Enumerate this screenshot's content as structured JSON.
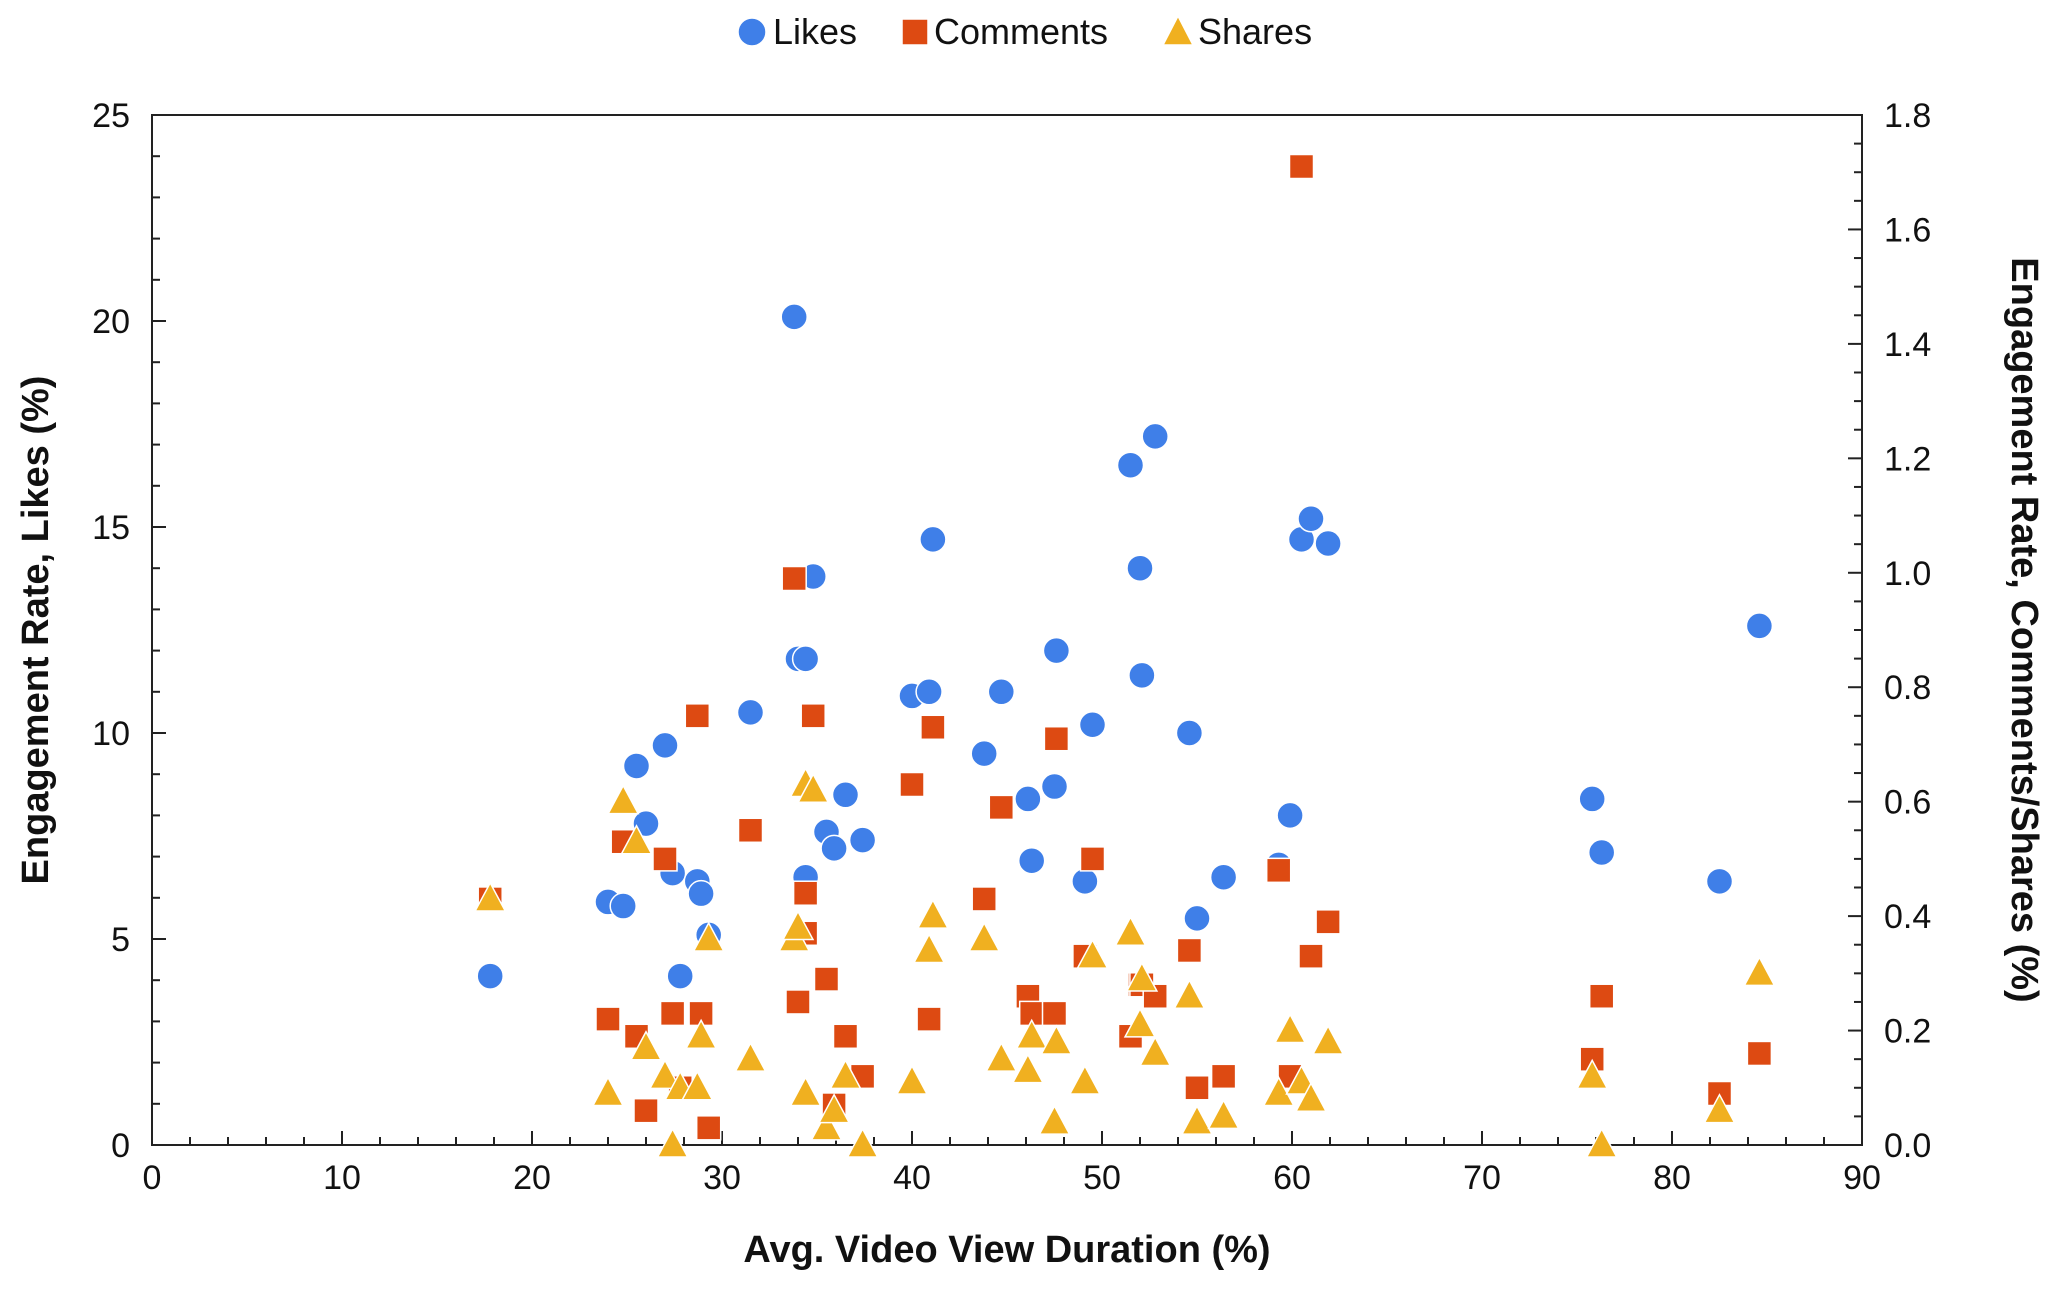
{
  "chart_data": {
    "type": "scatter",
    "title": "",
    "xlabel": "Avg. Video View Duration (%)",
    "ylabel": "Engagement Rate, Likes (%)",
    "y2label": "Engagement Rate, Comments/Shares (%)",
    "xlim": [
      0,
      90
    ],
    "ylim": [
      0,
      25
    ],
    "y2lim": [
      0,
      1.8
    ],
    "xticks": [
      "0",
      "10",
      "20",
      "30",
      "40",
      "50",
      "60",
      "70",
      "80",
      "90"
    ],
    "yticks": [
      "0",
      "5",
      "10",
      "15",
      "20",
      "25"
    ],
    "y2ticks": [
      "0.0",
      "0.2",
      "0.4",
      "0.6",
      "0.8",
      "1.0",
      "1.2",
      "1.4",
      "1.6",
      "1.8"
    ],
    "grid": false,
    "legend_position": "top-center",
    "colors": {
      "likes": "#3f7fe8",
      "comments": "#dd4a12",
      "shares": "#f0b020"
    },
    "series": [
      {
        "name": "Likes",
        "axis": "left",
        "marker": "circle",
        "points": [
          [
            17.8,
            4.1
          ],
          [
            24,
            5.9
          ],
          [
            24.8,
            5.8
          ],
          [
            25.5,
            9.2
          ],
          [
            26,
            7.8
          ],
          [
            27,
            9.7
          ],
          [
            27.4,
            6.6
          ],
          [
            27.8,
            4.1
          ],
          [
            28.7,
            6.4
          ],
          [
            28.9,
            6.1
          ],
          [
            29.3,
            5.1
          ],
          [
            31.5,
            10.5
          ],
          [
            33.8,
            20.1
          ],
          [
            34,
            11.8
          ],
          [
            34.4,
            11.8
          ],
          [
            34.4,
            6.5
          ],
          [
            34.8,
            13.8
          ],
          [
            35.5,
            7.6
          ],
          [
            35.9,
            7.2
          ],
          [
            36.5,
            8.5
          ],
          [
            37.4,
            7.4
          ],
          [
            40,
            10.9
          ],
          [
            40.9,
            11
          ],
          [
            41.1,
            14.7
          ],
          [
            43.8,
            9.5
          ],
          [
            44.7,
            11
          ],
          [
            46.1,
            8.4
          ],
          [
            46.3,
            6.9
          ],
          [
            47.5,
            8.7
          ],
          [
            47.6,
            12
          ],
          [
            49.1,
            6.4
          ],
          [
            49.5,
            10.2
          ],
          [
            51.5,
            16.5
          ],
          [
            52,
            14
          ],
          [
            52.1,
            11.4
          ],
          [
            52.8,
            17.2
          ],
          [
            54.6,
            10
          ],
          [
            55,
            5.5
          ],
          [
            56.4,
            6.5
          ],
          [
            59.3,
            6.8
          ],
          [
            59.9,
            8
          ],
          [
            60.5,
            14.7
          ],
          [
            61,
            15.2
          ],
          [
            61.9,
            14.6
          ],
          [
            75.8,
            8.4
          ],
          [
            76.3,
            7.1
          ],
          [
            82.5,
            6.4
          ],
          [
            84.6,
            12.6
          ]
        ]
      },
      {
        "name": "Comments",
        "axis": "right",
        "marker": "square",
        "points": [
          [
            17.8,
            0.43
          ],
          [
            24,
            0.22
          ],
          [
            24.8,
            0.53
          ],
          [
            25.5,
            0.19
          ],
          [
            26,
            0.06
          ],
          [
            27,
            0.5
          ],
          [
            27.4,
            0.23
          ],
          [
            27.8,
            0.1
          ],
          [
            28.7,
            0.75
          ],
          [
            28.9,
            0.23
          ],
          [
            29.3,
            0.03
          ],
          [
            31.5,
            0.55
          ],
          [
            33.8,
            0.99
          ],
          [
            34,
            0.25
          ],
          [
            34.4,
            0.44
          ],
          [
            34.4,
            0.37
          ],
          [
            34.8,
            0.75
          ],
          [
            35.5,
            0.29
          ],
          [
            35.9,
            0.07
          ],
          [
            36.5,
            0.19
          ],
          [
            37.4,
            0.12
          ],
          [
            40,
            0.63
          ],
          [
            40.9,
            0.22
          ],
          [
            41.1,
            0.73
          ],
          [
            43.8,
            0.43
          ],
          [
            44.7,
            0.59
          ],
          [
            46.1,
            0.26
          ],
          [
            46.3,
            0.23
          ],
          [
            47.5,
            0.23
          ],
          [
            47.6,
            0.71
          ],
          [
            49.1,
            0.33
          ],
          [
            49.5,
            0.5
          ],
          [
            51.5,
            0.19
          ],
          [
            52,
            0.28
          ],
          [
            52.1,
            0.28
          ],
          [
            52.8,
            0.26
          ],
          [
            54.6,
            0.34
          ],
          [
            55,
            0.1
          ],
          [
            56.4,
            0.12
          ],
          [
            59.3,
            0.48
          ],
          [
            59.9,
            0.12
          ],
          [
            60.5,
            1.71
          ],
          [
            61,
            0.33
          ],
          [
            61.9,
            0.39
          ],
          [
            75.8,
            0.15
          ],
          [
            76.3,
            0.26
          ],
          [
            82.5,
            0.09
          ],
          [
            84.6,
            0.16
          ]
        ]
      },
      {
        "name": "Shares",
        "axis": "right",
        "marker": "triangle",
        "points": [
          [
            17.8,
            0.43
          ],
          [
            24,
            0.09
          ],
          [
            24.8,
            0.6
          ],
          [
            25.5,
            0.53
          ],
          [
            26,
            0.17
          ],
          [
            27,
            0.12
          ],
          [
            27.4,
            0
          ],
          [
            27.8,
            0.1
          ],
          [
            28.7,
            0.1
          ],
          [
            28.9,
            0.19
          ],
          [
            29.3,
            0.36
          ],
          [
            31.5,
            0.15
          ],
          [
            33.8,
            0.36
          ],
          [
            34,
            0.38
          ],
          [
            34.4,
            0.63
          ],
          [
            34.4,
            0.09
          ],
          [
            34.8,
            0.62
          ],
          [
            35.5,
            0.03
          ],
          [
            35.9,
            0.06
          ],
          [
            36.5,
            0.12
          ],
          [
            37.4,
            0
          ],
          [
            40,
            0.11
          ],
          [
            40.9,
            0.34
          ],
          [
            41.1,
            0.4
          ],
          [
            43.8,
            0.36
          ],
          [
            44.7,
            0.15
          ],
          [
            46.1,
            0.13
          ],
          [
            46.3,
            0.19
          ],
          [
            47.5,
            0.04
          ],
          [
            47.6,
            0.18
          ],
          [
            49.1,
            0.11
          ],
          [
            49.5,
            0.33
          ],
          [
            51.5,
            0.37
          ],
          [
            52,
            0.21
          ],
          [
            52.1,
            0.29
          ],
          [
            52.8,
            0.16
          ],
          [
            54.6,
            0.26
          ],
          [
            55,
            0.04
          ],
          [
            56.4,
            0.05
          ],
          [
            59.3,
            0.09
          ],
          [
            59.9,
            0.2
          ],
          [
            60.5,
            0.11
          ],
          [
            61,
            0.08
          ],
          [
            61.9,
            0.18
          ],
          [
            75.8,
            0.12
          ],
          [
            76.3,
            0
          ],
          [
            82.5,
            0.06
          ],
          [
            84.6,
            0.3
          ]
        ]
      }
    ]
  }
}
